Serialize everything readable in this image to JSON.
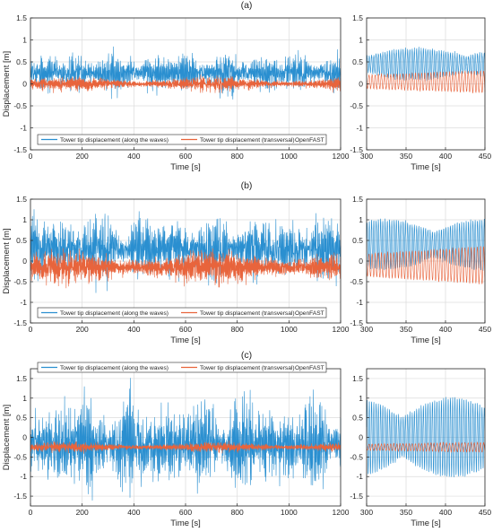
{
  "colors": {
    "along": "#2a8fd0",
    "transversal": "#e8643c",
    "grid": "#dcdcdc",
    "axis": "#262626"
  },
  "chart_data": [
    {
      "type": "line",
      "panel": "(a)",
      "label": "(a)",
      "ylabel": "Displacement [m]",
      "xlabel": "Time [s]",
      "xlim": [
        0,
        1200
      ],
      "ylim": [
        -1.5,
        1.5
      ],
      "xticks": [
        0,
        200,
        400,
        600,
        800,
        1000,
        1200
      ],
      "yticks": [
        -1.5,
        -1,
        -0.5,
        0,
        0.5,
        1,
        1.5
      ],
      "grid": true,
      "legend_position": "bottom",
      "legend": {
        "along": "Tower tip displacement (along the waves)",
        "transversal": "Tower tip displacement (transversal)",
        "suffix": "OpenFAST"
      },
      "series": [
        {
          "name": "Tower tip displacement (along the waves)",
          "mean": 0.25,
          "std": 0.2
        },
        {
          "name": "Tower tip displacement (transversal)",
          "mean": 0.0,
          "std": 0.1
        }
      ],
      "zoom": {
        "xlim": [
          300,
          450
        ],
        "xticks": [
          300,
          350,
          400,
          450
        ],
        "xlabel": "Time [s]",
        "along_mean": 0.45,
        "along_amp": 0.35,
        "trans_mean": 0.05,
        "trans_amp": 0.25
      }
    },
    {
      "type": "line",
      "panel": "(b)",
      "label": "(b)",
      "ylabel": "Displacement [m]",
      "xlabel": "Time [s]",
      "xlim": [
        0,
        1200
      ],
      "ylim": [
        -1.5,
        1.5
      ],
      "xticks": [
        0,
        200,
        400,
        600,
        800,
        1000,
        1200
      ],
      "yticks": [
        -1.5,
        -1,
        -0.5,
        0,
        0.5,
        1,
        1.5
      ],
      "grid": true,
      "legend_position": "bottom",
      "legend": {
        "along": "Tower tip displacement (along the waves)",
        "transversal": "Tower tip displacement (transversal)",
        "suffix": "OpenFAST"
      },
      "series": [
        {
          "name": "Tower tip displacement (along the waves)",
          "mean": 0.3,
          "std": 0.35
        },
        {
          "name": "Tower tip displacement (transversal)",
          "mean": -0.15,
          "std": 0.25
        }
      ],
      "zoom": {
        "xlim": [
          300,
          450
        ],
        "xticks": [
          300,
          350,
          400,
          450
        ],
        "xlabel": "Time [s]",
        "along_mean": 0.4,
        "along_amp": 0.6,
        "trans_mean": -0.1,
        "trans_amp": 0.45
      }
    },
    {
      "type": "line",
      "panel": "(c)",
      "label": "(c)",
      "ylabel": "Displacement [m]",
      "xlabel": "Time [s]",
      "xlim": [
        0,
        1200
      ],
      "ylim": [
        -1.75,
        1.75
      ],
      "xticks": [
        0,
        200,
        400,
        600,
        800,
        1000,
        1200
      ],
      "yticks": [
        -1.5,
        -1,
        -0.5,
        0,
        0.5,
        1,
        1.5
      ],
      "grid": true,
      "legend_position": "top",
      "legend": {
        "along": "Tower tip displacement (along the waves)",
        "transversal": "Tower tip displacement (transversal)",
        "suffix": "OpenFAST"
      },
      "series": [
        {
          "name": "Tower tip displacement (along the waves)",
          "mean": -0.2,
          "std": 0.55
        },
        {
          "name": "Tower tip displacement (transversal)",
          "mean": -0.25,
          "std": 0.08
        }
      ],
      "zoom": {
        "xlim": [
          300,
          450
        ],
        "xticks": [
          300,
          350,
          400,
          450
        ],
        "xlabel": "Time [s]",
        "along_mean": 0.0,
        "along_amp": 1.0,
        "trans_mean": -0.25,
        "trans_amp": 0.12
      }
    }
  ]
}
